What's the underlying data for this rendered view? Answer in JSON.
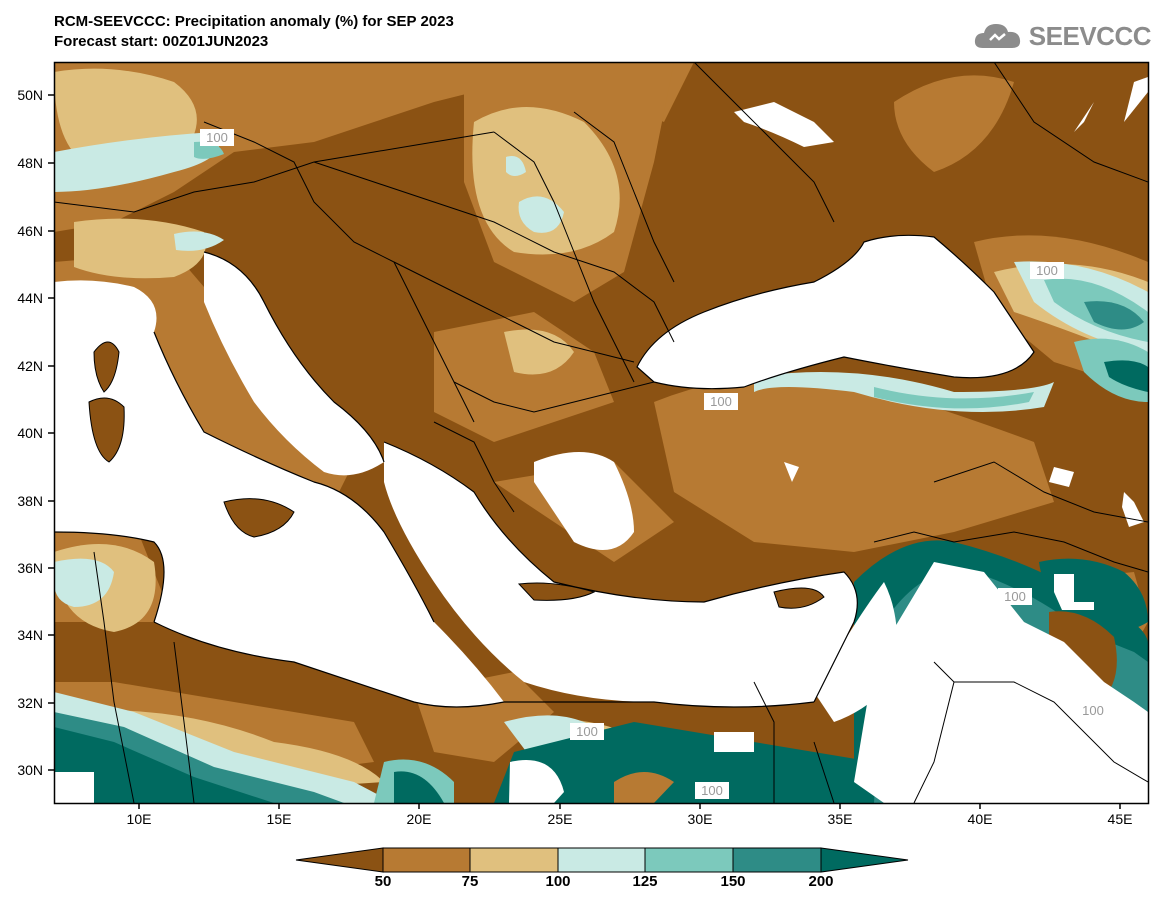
{
  "header": {
    "title_line1": "RCM-SEEVCCC: Precipitation anomaly (%) for SEP 2023",
    "title_line2": "Forecast start: 00Z01JUN2023",
    "logo_text": "SEEVCCC"
  },
  "axes": {
    "lat_labels": [
      "50N",
      "48N",
      "46N",
      "44N",
      "42N",
      "40N",
      "38N",
      "36N",
      "34N",
      "32N",
      "30N"
    ],
    "lon_labels": [
      "10E",
      "15E",
      "20E",
      "25E",
      "30E",
      "35E",
      "40E",
      "45E"
    ]
  },
  "contour_labels": [
    "100",
    "100",
    "100",
    "100",
    "100",
    "100",
    "100"
  ],
  "colorbar": {
    "labels": [
      "50",
      "75",
      "100",
      "125",
      "150",
      "200"
    ],
    "colors": [
      "#8b5213",
      "#b77a33",
      "#e0c07e",
      "#c9eae4",
      "#7cc9bc",
      "#2e8c86",
      "#006a60"
    ]
  },
  "colors": {
    "land_dark": "#8b5213",
    "land_mid": "#b77a33",
    "land_light": "#e0c07e",
    "wet_light": "#c9eae4",
    "wet_mid": "#7cc9bc",
    "wet_dark": "#006a60",
    "sea": "#ffffff"
  }
}
